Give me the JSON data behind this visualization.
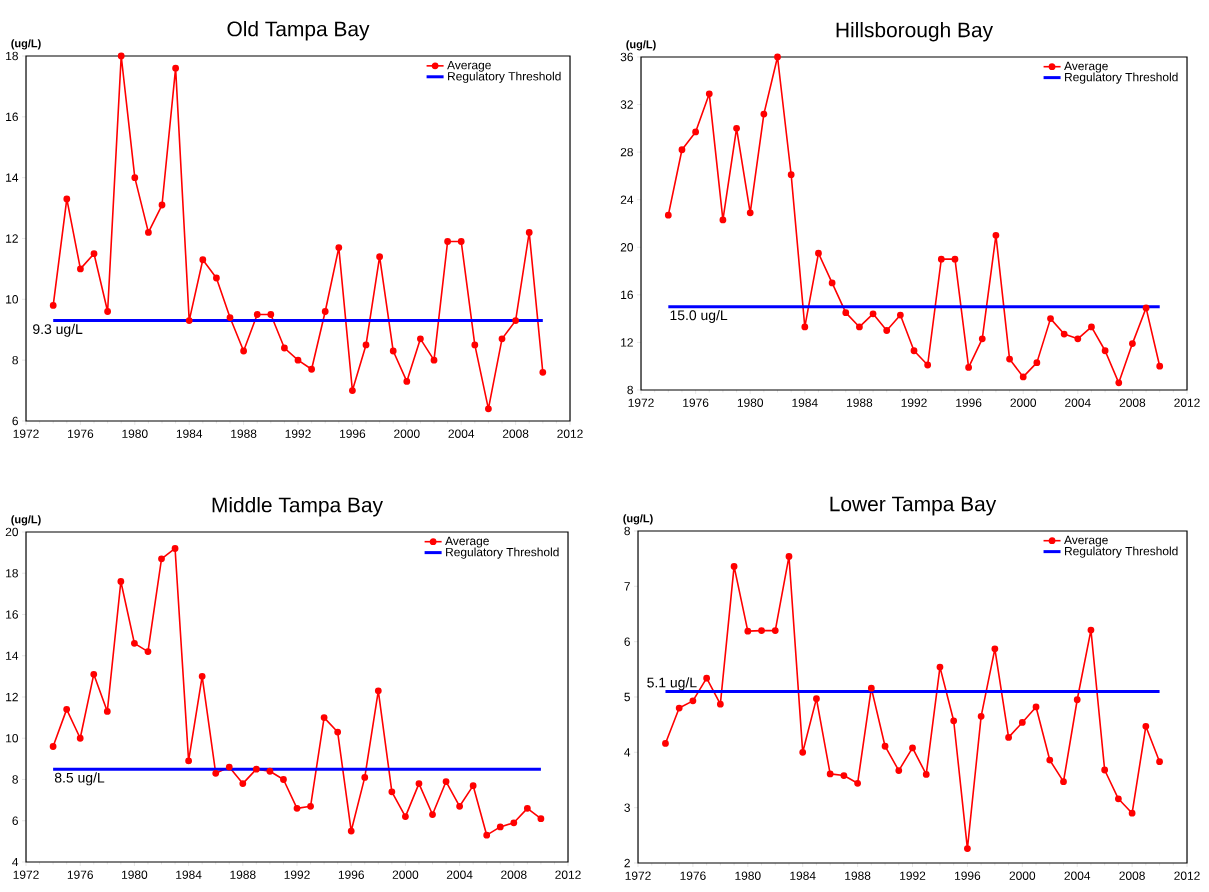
{
  "chart_data": [
    {
      "type": "line",
      "title": "Old Tampa Bay",
      "ylabel": "(ug/L)",
      "x": [
        1974,
        1975,
        1976,
        1977,
        1978,
        1979,
        1980,
        1981,
        1982,
        1983,
        1984,
        1985,
        1986,
        1987,
        1988,
        1989,
        1990,
        1991,
        1992,
        1993,
        1994,
        1995,
        1996,
        1997,
        1998,
        1999,
        2000,
        2001,
        2002,
        2003,
        2004,
        2005,
        2006,
        2007,
        2008,
        2009,
        2010
      ],
      "series": [
        {
          "name": "Average",
          "color": "#ff0000",
          "marker": "circle",
          "values": [
            9.8,
            13.3,
            11.0,
            11.5,
            9.6,
            18.0,
            14.0,
            12.2,
            13.1,
            17.6,
            9.3,
            11.3,
            10.7,
            9.4,
            8.3,
            9.5,
            9.5,
            8.4,
            8.0,
            7.7,
            9.6,
            11.7,
            7.0,
            8.5,
            11.4,
            8.3,
            7.3,
            8.7,
            8.0,
            11.9,
            11.9,
            8.5,
            6.4,
            8.7,
            9.3,
            12.2,
            7.6
          ]
        },
        {
          "name": "Regulatory Threshold",
          "color": "#0000ff",
          "marker": "none",
          "values": [
            9.3,
            9.3,
            9.3,
            9.3,
            9.3,
            9.3,
            9.3,
            9.3,
            9.3,
            9.3,
            9.3,
            9.3,
            9.3,
            9.3,
            9.3,
            9.3,
            9.3,
            9.3,
            9.3,
            9.3,
            9.3,
            9.3,
            9.3,
            9.3,
            9.3,
            9.3,
            9.3,
            9.3,
            9.3,
            9.3,
            9.3,
            9.3,
            9.3,
            9.3,
            9.3,
            9.3,
            9.3
          ]
        }
      ],
      "xlim": [
        1972,
        2012
      ],
      "xticks": [
        1972,
        1976,
        1980,
        1984,
        1988,
        1992,
        1996,
        2000,
        2004,
        2008,
        2012
      ],
      "ylim": [
        6,
        18
      ],
      "yticks": [
        6,
        8,
        10,
        12,
        14,
        16,
        18
      ],
      "legend": "top right",
      "annotations": [
        "9.3 ug/L"
      ]
    },
    {
      "type": "line",
      "title": "Hillsborough Bay",
      "ylabel": "(ug/L)",
      "x": [
        1974,
        1975,
        1976,
        1977,
        1978,
        1979,
        1980,
        1981,
        1982,
        1983,
        1984,
        1985,
        1986,
        1987,
        1988,
        1989,
        1990,
        1991,
        1992,
        1993,
        1994,
        1995,
        1996,
        1997,
        1998,
        1999,
        2000,
        2001,
        2002,
        2003,
        2004,
        2005,
        2006,
        2007,
        2008,
        2009,
        2010
      ],
      "series": [
        {
          "name": "Average",
          "color": "#ff0000",
          "marker": "circle",
          "values": [
            22.7,
            28.2,
            29.7,
            32.9,
            22.3,
            30.0,
            22.9,
            31.2,
            36.0,
            26.1,
            13.3,
            19.5,
            17.0,
            14.5,
            13.3,
            14.4,
            13.0,
            14.3,
            11.3,
            10.1,
            19.0,
            19.0,
            9.9,
            12.3,
            21.0,
            10.6,
            9.1,
            10.3,
            14.0,
            12.7,
            12.3,
            13.3,
            11.3,
            8.6,
            11.9,
            14.9,
            10.0
          ]
        },
        {
          "name": "Regulatory Threshold",
          "color": "#0000ff",
          "marker": "none",
          "values": [
            15.0,
            15.0,
            15.0,
            15.0,
            15.0,
            15.0,
            15.0,
            15.0,
            15.0,
            15.0,
            15.0,
            15.0,
            15.0,
            15.0,
            15.0,
            15.0,
            15.0,
            15.0,
            15.0,
            15.0,
            15.0,
            15.0,
            15.0,
            15.0,
            15.0,
            15.0,
            15.0,
            15.0,
            15.0,
            15.0,
            15.0,
            15.0,
            15.0,
            15.0,
            15.0,
            15.0,
            15.0
          ]
        }
      ],
      "xlim": [
        1972,
        2012
      ],
      "xticks": [
        1972,
        1976,
        1980,
        1984,
        1988,
        1992,
        1996,
        2000,
        2004,
        2008,
        2012
      ],
      "ylim": [
        8,
        36
      ],
      "yticks": [
        8,
        12,
        16,
        20,
        24,
        28,
        32,
        36
      ],
      "legend": "top right",
      "annotations": [
        "15.0 ug/L"
      ]
    },
    {
      "type": "line",
      "title": "Middle Tampa Bay",
      "ylabel": "(ug/L)",
      "x": [
        1974,
        1975,
        1976,
        1977,
        1978,
        1979,
        1980,
        1981,
        1982,
        1983,
        1984,
        1985,
        1986,
        1987,
        1988,
        1989,
        1990,
        1991,
        1992,
        1993,
        1994,
        1995,
        1996,
        1997,
        1998,
        1999,
        2000,
        2001,
        2002,
        2003,
        2004,
        2005,
        2006,
        2007,
        2008,
        2009,
        2010
      ],
      "series": [
        {
          "name": "Average",
          "color": "#ff0000",
          "marker": "circle",
          "values": [
            9.6,
            11.4,
            10.0,
            13.1,
            11.3,
            17.6,
            14.6,
            14.2,
            18.7,
            19.2,
            8.9,
            13.0,
            8.3,
            8.6,
            7.8,
            8.5,
            8.4,
            8.0,
            6.6,
            6.7,
            11.0,
            10.3,
            5.5,
            8.1,
            12.3,
            7.4,
            6.2,
            7.8,
            6.3,
            7.9,
            6.7,
            7.7,
            5.3,
            5.7,
            5.9,
            6.6,
            6.1
          ]
        },
        {
          "name": "Regulatory Threshold",
          "color": "#0000ff",
          "marker": "none",
          "values": [
            8.5,
            8.5,
            8.5,
            8.5,
            8.5,
            8.5,
            8.5,
            8.5,
            8.5,
            8.5,
            8.5,
            8.5,
            8.5,
            8.5,
            8.5,
            8.5,
            8.5,
            8.5,
            8.5,
            8.5,
            8.5,
            8.5,
            8.5,
            8.5,
            8.5,
            8.5,
            8.5,
            8.5,
            8.5,
            8.5,
            8.5,
            8.5,
            8.5,
            8.5,
            8.5,
            8.5,
            8.5
          ]
        }
      ],
      "xlim": [
        1972,
        2012
      ],
      "xticks": [
        1972,
        1976,
        1980,
        1984,
        1988,
        1992,
        1996,
        2000,
        2004,
        2008,
        2012
      ],
      "ylim": [
        4,
        20
      ],
      "yticks": [
        4,
        6,
        8,
        10,
        12,
        14,
        16,
        18,
        20
      ],
      "legend": "top right",
      "annotations": [
        "8.5 ug/L"
      ]
    },
    {
      "type": "line",
      "title": "Lower Tampa Bay",
      "ylabel": "(ug/L)",
      "x": [
        1974,
        1975,
        1976,
        1977,
        1978,
        1979,
        1980,
        1981,
        1982,
        1983,
        1984,
        1985,
        1986,
        1987,
        1988,
        1989,
        1990,
        1991,
        1992,
        1993,
        1994,
        1995,
        1996,
        1997,
        1998,
        1999,
        2000,
        2001,
        2002,
        2003,
        2004,
        2005,
        2006,
        2007,
        2008,
        2009,
        2010
      ],
      "series": [
        {
          "name": "Average",
          "color": "#ff0000",
          "marker": "circle",
          "values": [
            4.16,
            4.8,
            4.93,
            5.34,
            4.87,
            7.36,
            6.19,
            6.2,
            6.2,
            7.54,
            4.0,
            4.97,
            3.61,
            3.58,
            3.44,
            5.16,
            4.11,
            3.67,
            4.08,
            3.6,
            5.54,
            4.57,
            2.26,
            4.65,
            5.87,
            4.27,
            4.54,
            4.82,
            3.86,
            3.47,
            4.95,
            6.21,
            3.68,
            3.16,
            2.9,
            4.47,
            3.83
          ]
        },
        {
          "name": "Regulatory Threshold",
          "color": "#0000ff",
          "marker": "none",
          "values": [
            5.1,
            5.1,
            5.1,
            5.1,
            5.1,
            5.1,
            5.1,
            5.1,
            5.1,
            5.1,
            5.1,
            5.1,
            5.1,
            5.1,
            5.1,
            5.1,
            5.1,
            5.1,
            5.1,
            5.1,
            5.1,
            5.1,
            5.1,
            5.1,
            5.1,
            5.1,
            5.1,
            5.1,
            5.1,
            5.1,
            5.1,
            5.1,
            5.1,
            5.1,
            5.1,
            5.1,
            5.1
          ]
        }
      ],
      "xlim": [
        1972,
        2012
      ],
      "xticks": [
        1972,
        1976,
        1980,
        1984,
        1988,
        1992,
        1996,
        2000,
        2004,
        2008,
        2012
      ],
      "ylim": [
        2,
        8
      ],
      "yticks": [
        2,
        3,
        4,
        5,
        6,
        7,
        8
      ],
      "legend": "top right",
      "annotations": [
        "5.1 ug/L"
      ]
    }
  ]
}
